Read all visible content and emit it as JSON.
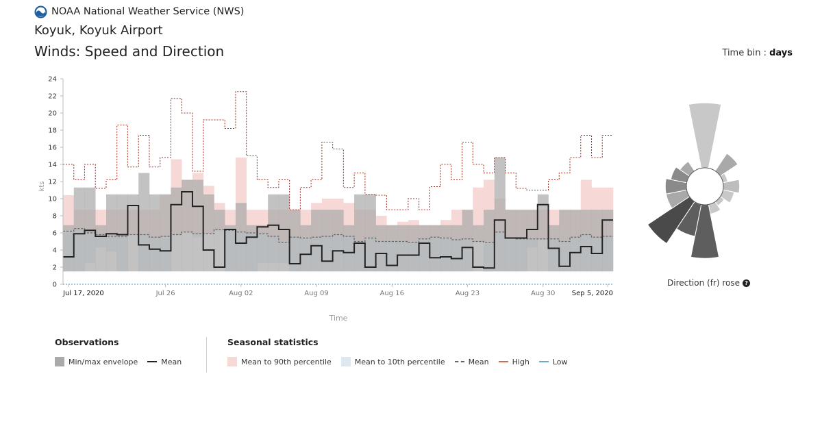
{
  "header": {
    "brand": "NOAA National Weather Service (NWS)",
    "station": "Koyuk, Koyuk Airport",
    "title": "Winds: Speed and Direction"
  },
  "timebin": {
    "label": "Time bin :",
    "value": "days"
  },
  "colors": {
    "envelope": "#aaaaaa",
    "mean": "#222222",
    "p90": "#f6d9d7",
    "p10": "#dde8f1",
    "seasonal_mean": "#666666",
    "high": "#a03020",
    "low": "#4a90c0"
  },
  "chart_data": {
    "type": "line",
    "xlabel": "Time",
    "ylabel": "kts",
    "ylim": [
      0,
      24
    ],
    "yticks": [
      0,
      2,
      4,
      6,
      8,
      10,
      12,
      14,
      16,
      18,
      20,
      22,
      24
    ],
    "x_start": "2020-07-17",
    "days": 51,
    "xticks": [
      {
        "label": "Jul 17, 2020",
        "day": 0
      },
      {
        "label": "Jul 26",
        "day": 9
      },
      {
        "label": "Aug 02",
        "day": 16
      },
      {
        "label": "Aug 09",
        "day": 23
      },
      {
        "label": "Aug 16",
        "day": 30
      },
      {
        "label": "Aug 23",
        "day": 37
      },
      {
        "label": "Aug 30",
        "day": 44
      },
      {
        "label": "Sep 5, 2020",
        "day": 50
      }
    ],
    "obs_min": [
      1.5,
      1.5,
      1.5,
      1.5,
      1.5,
      1.5,
      1.5,
      1.5,
      1.5,
      1.5,
      1.5,
      1.5,
      1.5,
      1.5,
      1.5,
      1.5,
      1.5,
      1.5,
      1.5,
      1.5,
      1.5,
      1.5,
      1.5,
      1.5,
      1.5,
      1.5,
      1.5,
      1.5,
      1.5,
      1.5,
      1.5,
      1.5,
      1.5,
      1.5,
      1.5,
      1.5,
      1.5,
      1.5,
      1.5,
      1.5,
      1.5,
      1.5,
      1.5,
      1.5,
      1.5,
      1.5,
      1.5,
      1.5,
      1.5,
      1.5,
      1.5
    ],
    "obs_max": [
      6.9,
      11.3,
      11.3,
      6.9,
      10.5,
      10.5,
      10.5,
      13.0,
      10.5,
      10.5,
      11.3,
      12.2,
      12.2,
      10.5,
      8.7,
      6.9,
      9.5,
      6.9,
      6.9,
      10.5,
      10.5,
      8.7,
      6.9,
      8.7,
      8.7,
      8.7,
      6.9,
      10.5,
      10.5,
      6.9,
      6.9,
      6.9,
      6.9,
      6.9,
      6.9,
      6.9,
      6.9,
      8.7,
      6.9,
      8.7,
      14.8,
      8.7,
      8.7,
      8.7,
      10.5,
      6.9,
      8.7,
      8.7,
      8.7,
      8.7,
      8.7
    ],
    "obs_mean": [
      3.2,
      5.9,
      6.3,
      5.6,
      5.9,
      5.8,
      9.2,
      4.6,
      4.1,
      3.9,
      9.3,
      10.8,
      9.1,
      4.0,
      2.0,
      6.4,
      4.8,
      5.5,
      6.7,
      6.9,
      6.4,
      2.4,
      3.5,
      4.5,
      2.7,
      3.9,
      3.7,
      4.8,
      2.0,
      3.6,
      2.2,
      3.4,
      3.4,
      4.8,
      3.1,
      3.2,
      3.0,
      4.3,
      2.0,
      1.9,
      7.5,
      5.4,
      5.4,
      6.4,
      9.3,
      4.2,
      2.1,
      3.7,
      4.4,
      3.6,
      7.5
    ],
    "p90": [
      10.4,
      8.7,
      8.7,
      8.7,
      8.7,
      8.7,
      8.7,
      8.7,
      8.7,
      10.5,
      14.6,
      12.2,
      13.0,
      11.5,
      9.5,
      8.7,
      14.8,
      8.7,
      8.7,
      8.7,
      8.7,
      8.7,
      8.7,
      9.5,
      10.0,
      10.0,
      9.5,
      8.7,
      8.7,
      8.0,
      6.9,
      7.3,
      7.5,
      6.9,
      6.9,
      7.5,
      8.7,
      8.7,
      11.3,
      12.2,
      10.0,
      8.7,
      8.7,
      8.7,
      8.7,
      8.7,
      8.7,
      8.7,
      12.2,
      11.3,
      11.3
    ],
    "p10": [
      1.5,
      1.5,
      2.5,
      4.3,
      3.8,
      1.5,
      6.1,
      1.5,
      1.5,
      1.5,
      7.9,
      7.5,
      5.5,
      6.9,
      6.2,
      1.5,
      1.5,
      1.5,
      2.5,
      2.5,
      2.5,
      1.5,
      1.5,
      1.5,
      1.5,
      1.5,
      1.5,
      1.5,
      1.5,
      1.5,
      1.5,
      1.5,
      1.5,
      1.5,
      1.5,
      1.5,
      1.5,
      1.5,
      6.5,
      1.5,
      1.5,
      1.5,
      1.5,
      4.3,
      5.2,
      1.5,
      1.5,
      1.5,
      1.5,
      1.5,
      1.5
    ],
    "seasonal_mean": [
      6.2,
      6.5,
      6.0,
      5.8,
      5.6,
      5.6,
      5.8,
      5.8,
      5.5,
      5.6,
      5.8,
      6.1,
      5.9,
      5.9,
      6.4,
      6.3,
      6.1,
      6.0,
      5.9,
      5.6,
      4.9,
      5.5,
      5.4,
      5.5,
      5.6,
      5.8,
      5.6,
      5.0,
      5.4,
      5.0,
      5.0,
      5.0,
      4.9,
      5.3,
      5.5,
      5.4,
      5.2,
      5.3,
      5.0,
      4.9,
      6.1,
      5.4,
      5.3,
      5.3,
      5.3,
      5.3,
      5.0,
      5.5,
      5.8,
      5.5,
      5.6
    ],
    "high": [
      14.0,
      12.2,
      14.0,
      11.2,
      12.2,
      18.6,
      13.7,
      17.4,
      13.7,
      14.8,
      21.7,
      20.0,
      13.2,
      19.2,
      19.2,
      18.2,
      22.5,
      15.0,
      12.2,
      11.3,
      12.2,
      8.7,
      11.3,
      12.2,
      16.6,
      15.8,
      11.3,
      13.0,
      10.5,
      10.4,
      8.7,
      8.7,
      10.0,
      8.7,
      11.4,
      14.0,
      12.2,
      16.6,
      14.0,
      13.0,
      14.8,
      13.0,
      11.2,
      11.0,
      11.0,
      12.2,
      13.0,
      14.8,
      17.4,
      14.8,
      17.4
    ],
    "low": [
      0.0,
      0.0,
      0.0,
      0.0,
      0.0,
      0.0,
      0.0,
      0.0,
      0.0,
      0.0,
      0.0,
      0.0,
      0.0,
      0.0,
      0.0,
      0.0,
      0.0,
      0.0,
      0.0,
      0.0,
      0.0,
      0.0,
      0.0,
      0.0,
      0.0,
      0.0,
      0.0,
      0.0,
      0.0,
      0.0,
      0.0,
      0.0,
      0.0,
      0.0,
      0.0,
      0.0,
      0.0,
      0.0,
      0.0,
      0.0,
      0.0,
      0.0,
      0.0,
      0.0,
      0.0,
      0.0,
      0.0,
      0.0,
      0.0,
      0.0,
      0.0
    ],
    "rose": {
      "directions": [
        "N",
        "NNE",
        "NE",
        "ENE",
        "E",
        "ESE",
        "SE",
        "SSE",
        "S",
        "SSW",
        "SW",
        "WSW",
        "W",
        "WNW",
        "NW",
        "NNW"
      ],
      "frequencies": [
        0.4,
        0.0,
        0.13,
        0.03,
        0.1,
        0.07,
        0.03,
        0.06,
        0.33,
        0.2,
        0.31,
        0.13,
        0.13,
        0.1,
        0.07,
        0.0
      ],
      "shades": [
        "#c8c8c8",
        "#c8c8c8",
        "#a9a9a9",
        "#c8c8c8",
        "#bdbdbd",
        "#c8c8c8",
        "#c8c8c8",
        "#c8c8c8",
        "#5e5e5e",
        "#5e5e5e",
        "#4a4a4a",
        "#a9a9a9",
        "#8a8a8a",
        "#8a8a8a",
        "#a9a9a9",
        "#c8c8c8"
      ]
    }
  },
  "rose_caption": "Direction (fr) rose",
  "legend": {
    "observations_title": "Observations",
    "minmax_label": "Min/max envelope",
    "mean_label": "Mean",
    "seasonal_title": "Seasonal statistics",
    "p90_label": "Mean to 90th percentile",
    "p10_label": "Mean to 10th percentile",
    "smean_label": "Mean",
    "high_label": "High",
    "low_label": "Low"
  }
}
